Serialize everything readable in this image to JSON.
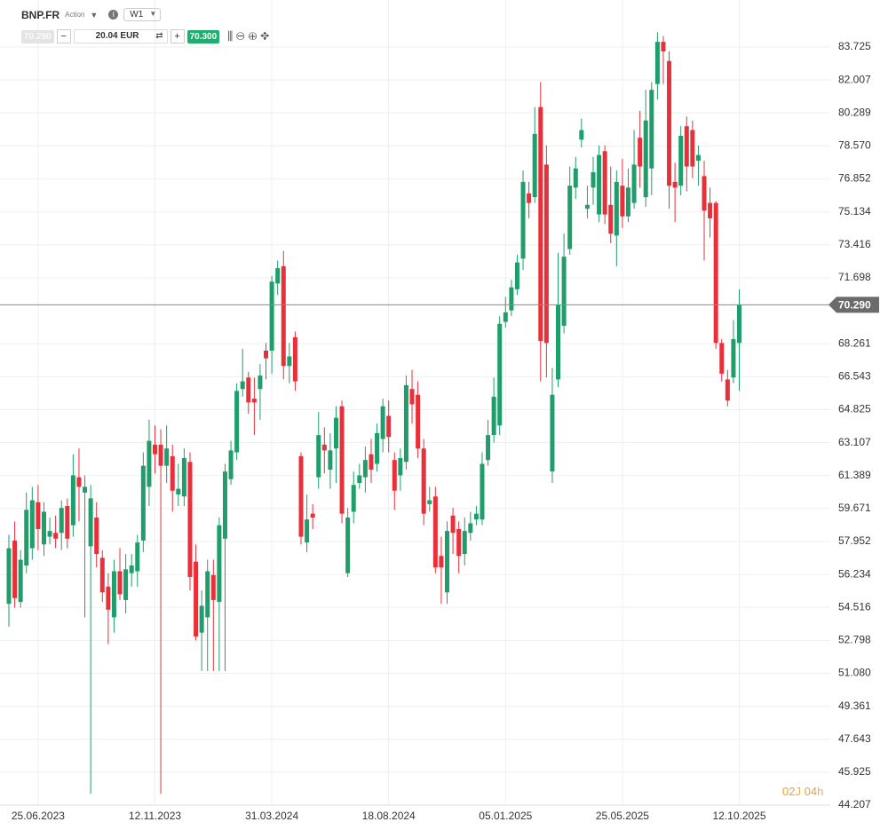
{
  "ui": {
    "symbol": "BNP.FR",
    "asset_type": "Action",
    "timeframe": "W1",
    "sell_price": "70.290",
    "quantity": "20.04 EUR",
    "buy_price": "70.300",
    "countdown": {
      "days": "02",
      "day_unit": "J",
      "hours": "04",
      "hour_unit": "h"
    }
  },
  "chart_data": {
    "type": "candlestick",
    "up_color": "#1f9e6b",
    "down_color": "#e8303a",
    "grid": true,
    "ylim": [
      44.207,
      86.18
    ],
    "yticks": [
      83.725,
      82.007,
      80.289,
      {
        "value": 78.57,
        "label": "78.570"
      },
      76.852,
      75.134,
      73.416,
      71.698,
      68.261,
      66.543,
      64.825,
      63.107,
      61.389,
      59.671,
      57.952,
      56.234,
      54.516,
      52.798,
      {
        "value": 51.08,
        "label": "51.080"
      },
      49.361,
      47.643,
      45.925,
      44.207
    ],
    "last_price": {
      "value": 70.29,
      "label": "70.290"
    },
    "categories": [
      null,
      null,
      null,
      null,
      null,
      "25.06.2023",
      null,
      null,
      null,
      null,
      null,
      null,
      null,
      null,
      null,
      null,
      null,
      null,
      null,
      null,
      null,
      null,
      null,
      null,
      null,
      "12.11.2023",
      null,
      null,
      null,
      null,
      null,
      null,
      null,
      null,
      null,
      null,
      null,
      null,
      null,
      null,
      null,
      null,
      null,
      null,
      null,
      "31.03.2024",
      null,
      null,
      null,
      null,
      null,
      null,
      null,
      null,
      null,
      null,
      null,
      null,
      null,
      null,
      null,
      null,
      null,
      null,
      null,
      "18.08.2024",
      null,
      null,
      null,
      null,
      null,
      null,
      null,
      null,
      null,
      null,
      null,
      null,
      null,
      null,
      null,
      null,
      null,
      null,
      null,
      "05.01.2025",
      null,
      null,
      null,
      null,
      null,
      null,
      null,
      null,
      null,
      null,
      null,
      null,
      null,
      null,
      null,
      null,
      null,
      null,
      null,
      "25.05.2025",
      null,
      null,
      null,
      null,
      null,
      null,
      null,
      null,
      null,
      null,
      null,
      null,
      null,
      null,
      null,
      null,
      null,
      null,
      null,
      "12.10.2025"
    ],
    "open": [
      54.7,
      58.0,
      54.8,
      56.7,
      57.6,
      60.0,
      57.8,
      58.2,
      58.4,
      58.4,
      59.8,
      58.8,
      61.3,
      60.5,
      57.7,
      59.2,
      57.1,
      55.6,
      54.0,
      56.4,
      54.9,
      56.3,
      56.4,
      58.0,
      60.8,
      63.0,
      63.0,
      61.9,
      62.4,
      60.4,
      60.3,
      62.1,
      56.9,
      53.2,
      54.0,
      56.2,
      54.8,
      58.1,
      61.2,
      62.6,
      65.9,
      66.5,
      65.4,
      65.9,
      67.9,
      67.9,
      71.4,
      72.3,
      67.1,
      68.6,
      62.4,
      57.9,
      59.4,
      61.3,
      63.0,
      61.7,
      62.8,
      65.0,
      56.3,
      59.5,
      61.0,
      61.3,
      62.5,
      62.0,
      63.3,
      64.5,
      62.2,
      61.4,
      62.1,
      65.9,
      65.6,
      62.8,
      59.9,
      60.3,
      57.2,
      55.3,
      59.3,
      58.6,
      57.3,
      58.4,
      59.1,
      59.1,
      62.2,
      63.5,
      64.0,
      69.4,
      70.0,
      71.1,
      72.7,
      76.1,
      75.9,
      80.6,
      77.6,
      61.6,
      66.4,
      69.2,
      73.2,
      76.4,
      78.9,
      75.3,
      76.4,
      75.0,
      78.3,
      75.5,
      73.9,
      76.5,
      74.9,
      75.6,
      79.0,
      75.9,
      77.4,
      81.8,
      84.0,
      83.0,
      76.7,
      76.5,
      79.6,
      79.4,
      77.8,
      77.0,
      75.6,
      75.6,
      68.3,
      66.4,
      66.5,
      68.3
    ],
    "high": [
      58.3,
      59.0,
      57.5,
      60.5,
      60.8,
      60.9,
      60.0,
      59.2,
      59.3,
      60.1,
      60.2,
      62.5,
      62.8,
      61.4,
      60.9,
      60.0,
      57.5,
      56.3,
      57.0,
      57.6,
      57.3,
      57.3,
      58.3,
      62.6,
      64.3,
      64.0,
      63.8,
      64.0,
      63.0,
      62.0,
      62.8,
      62.6,
      57.8,
      55.4,
      57.0,
      57.0,
      59.2,
      62.0,
      63.2,
      66.2,
      68.0,
      66.8,
      66.5,
      67.2,
      68.3,
      71.8,
      72.6,
      73.1,
      68.3,
      68.9,
      62.6,
      60.4,
      59.9,
      64.7,
      63.9,
      63.6,
      65.0,
      65.3,
      59.7,
      61.6,
      62.0,
      62.9,
      63.3,
      64.1,
      65.4,
      65.3,
      62.6,
      62.8,
      66.6,
      66.9,
      66.3,
      63.3,
      60.8,
      60.8,
      58.2,
      59.0,
      59.7,
      59.0,
      59.2,
      59.5,
      59.8,
      62.6,
      64.3,
      66.5,
      69.7,
      70.7,
      71.6,
      72.9,
      77.3,
      76.7,
      80.6,
      81.9,
      78.6,
      67.0,
      73.0,
      74.0,
      77.5,
      78.0,
      80.0,
      76.5,
      78.0,
      78.6,
      78.6,
      77.5,
      77.3,
      77.9,
      77.4,
      79.4,
      80.4,
      81.5,
      81.9,
      84.5,
      84.3,
      83.5,
      77.7,
      79.6,
      80.1,
      79.9,
      78.6,
      77.8,
      76.4,
      75.7,
      68.5,
      66.9,
      69.5,
      71.1
    ],
    "low": [
      53.5,
      54.5,
      54.5,
      56.3,
      57.0,
      57.5,
      57.2,
      57.8,
      57.6,
      57.5,
      57.6,
      58.2,
      59.0,
      54.0,
      44.8,
      56.6,
      54.8,
      52.6,
      53.2,
      54.9,
      54.2,
      55.6,
      55.6,
      57.4,
      59.8,
      61.5,
      44.8,
      61.0,
      59.5,
      59.8,
      59.8,
      55.4,
      52.8,
      51.2,
      51.2,
      51.2,
      51.2,
      51.2,
      60.9,
      62.2,
      65.5,
      64.6,
      63.5,
      64.3,
      66.4,
      66.7,
      70.8,
      66.4,
      66.2,
      65.8,
      57.8,
      57.4,
      58.6,
      60.7,
      61.5,
      60.7,
      61.0,
      58.9,
      56.1,
      58.9,
      60.7,
      60.5,
      61.0,
      61.6,
      62.6,
      62.6,
      59.6,
      60.6,
      61.7,
      64.1,
      62.3,
      58.8,
      59.5,
      56.3,
      54.7,
      54.7,
      57.3,
      56.3,
      56.7,
      58.0,
      58.8,
      58.8,
      61.9,
      63.1,
      63.5,
      69.1,
      69.7,
      70.8,
      72.1,
      74.8,
      75.6,
      66.3,
      66.5,
      61.0,
      66.0,
      68.8,
      72.9,
      75.8,
      78.5,
      74.8,
      75.5,
      74.6,
      74.5,
      73.5,
      72.3,
      74.3,
      74.6,
      75.3,
      76.4,
      75.4,
      76.0,
      81.0,
      81.8,
      75.3,
      74.6,
      76.0,
      76.2,
      76.9,
      76.5,
      72.6,
      73.8,
      68.0,
      66.3,
      65.0,
      66.2,
      65.8
    ],
    "close": [
      57.6,
      55.0,
      57.0,
      59.6,
      60.1,
      58.6,
      59.5,
      58.5,
      58.1,
      59.7,
      58.1,
      61.4,
      60.8,
      60.8,
      60.2,
      57.3,
      55.3,
      54.4,
      56.4,
      55.2,
      56.5,
      56.7,
      57.9,
      61.9,
      63.2,
      62.5,
      61.9,
      62.8,
      60.6,
      60.7,
      62.3,
      56.1,
      53.0,
      54.6,
      56.4,
      54.9,
      58.8,
      61.6,
      62.7,
      65.8,
      66.3,
      65.2,
      65.2,
      66.6,
      67.5,
      71.5,
      72.2,
      67.1,
      67.6,
      66.3,
      58.2,
      59.1,
      59.2,
      63.5,
      62.7,
      62.7,
      64.4,
      59.4,
      59.2,
      60.9,
      61.4,
      62.2,
      61.7,
      63.6,
      65.0,
      63.4,
      60.6,
      62.3,
      66.1,
      65.1,
      62.8,
      59.4,
      60.1,
      56.6,
      56.6,
      58.5,
      58.4,
      57.2,
      58.5,
      58.9,
      59.4,
      62.0,
      63.5,
      65.5,
      69.3,
      69.9,
      71.2,
      72.5,
      76.7,
      75.6,
      79.2,
      68.4,
      68.3,
      65.6,
      70.3,
      72.8,
      76.5,
      77.4,
      79.4,
      75.5,
      77.2,
      78.1,
      75.0,
      74.0,
      76.7,
      74.9,
      76.4,
      77.6,
      77.5,
      79.9,
      81.5,
      84.0,
      83.5,
      76.5,
      76.4,
      79.1,
      77.5,
      77.5,
      78.1,
      75.2,
      74.8,
      68.3,
      66.7,
      65.3,
      68.5,
      70.29
    ]
  }
}
